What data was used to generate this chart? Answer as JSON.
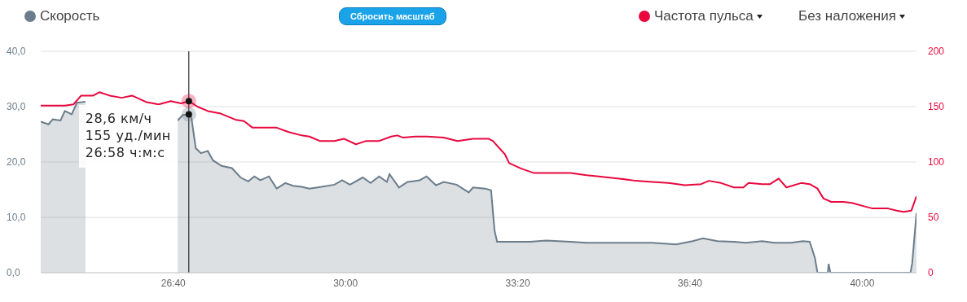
{
  "chart_data": {
    "type": "area",
    "series": [
      {
        "name": "Скорость",
        "color": "#6b7d8c",
        "x": [
          1446,
          1455,
          1460,
          1469,
          1474,
          1482,
          1488,
          1498,
          1512,
          1531,
          1550,
          1569,
          1588,
          1605,
          1611,
          1618,
          1621,
          1626,
          1632,
          1640,
          1646,
          1656,
          1668,
          1678,
          1687,
          1694,
          1701,
          1711,
          1720,
          1730,
          1739,
          1749,
          1758,
          1772,
          1787,
          1796,
          1805,
          1820,
          1829,
          1839,
          1848,
          1851,
          1862,
          1872,
          1886,
          1894,
          1905,
          1914,
          1929,
          1943,
          1948,
          1962,
          1969,
          1973,
          1976,
          1990,
          2014,
          2033,
          2061,
          2080,
          2118,
          2156,
          2184,
          2203,
          2215,
          2232,
          2251,
          2265,
          2284,
          2298,
          2317,
          2331,
          2339,
          2345,
          2348,
          2360,
          2361,
          2363,
          2456,
          2458,
          2463
        ],
        "values": [
          27.3,
          26.8,
          27.7,
          27.5,
          29.2,
          28.6,
          30.7,
          30.9,
          null,
          null,
          null,
          null,
          null,
          27.5,
          28.5,
          28.6,
          28,
          22.5,
          21.6,
          22,
          20.3,
          19.3,
          18.9,
          17.2,
          16.5,
          17.4,
          16.7,
          17.4,
          15.2,
          16.2,
          15.7,
          15.5,
          15.2,
          15.5,
          15.9,
          16.7,
          15.9,
          17.2,
          16.2,
          17.4,
          16.4,
          17.8,
          15.4,
          16.4,
          16.7,
          17.4,
          15.8,
          16.4,
          15.9,
          14.5,
          15.4,
          15.2,
          14.9,
          7.6,
          5.6,
          5.6,
          5.6,
          5.8,
          5.6,
          5.4,
          5.4,
          5.4,
          5.1,
          5.7,
          6.2,
          5.7,
          5.6,
          5.4,
          5.7,
          5.4,
          5.4,
          5.7,
          5.6,
          2.7,
          0,
          0,
          1.6,
          0,
          0,
          1.7,
          10.8
        ]
      },
      {
        "name": "Частота пульса",
        "type": "line",
        "axis": "y2",
        "color": "#e8083e",
        "x": [
          1446,
          1455,
          1474,
          1484,
          1493,
          1507,
          1514,
          1526,
          1540,
          1552,
          1569,
          1583,
          1597,
          1609,
          1618,
          1628,
          1640,
          1654,
          1673,
          1682,
          1692,
          1706,
          1720,
          1734,
          1749,
          1758,
          1770,
          1787,
          1798,
          1812,
          1824,
          1839,
          1853,
          1860,
          1867,
          1881,
          1895,
          1914,
          1930,
          1948,
          1966,
          1971,
          1985,
          1990,
          2004,
          2019,
          2042,
          2061,
          2080,
          2094,
          2118,
          2137,
          2156,
          2175,
          2194,
          2213,
          2222,
          2236,
          2251,
          2262,
          2268,
          2284,
          2293,
          2303,
          2312,
          2329,
          2339,
          2348,
          2355,
          2364,
          2378,
          2388,
          2402,
          2412,
          2430,
          2440,
          2448,
          2457,
          2463
        ],
        "values": [
          151,
          151,
          151,
          152,
          160,
          160,
          163,
          160,
          158,
          160,
          154,
          152,
          155,
          153,
          155,
          150,
          146,
          144,
          138,
          137,
          131,
          131,
          131,
          127,
          124,
          123,
          119,
          119,
          121,
          116,
          119,
          119,
          123,
          124,
          122,
          123,
          123,
          122,
          119,
          121,
          121,
          119,
          107,
          99,
          94,
          90,
          90,
          90,
          88,
          87,
          85,
          83,
          82,
          81,
          79,
          80,
          83,
          81,
          77,
          77,
          81,
          80,
          80,
          85,
          77,
          81,
          80,
          76,
          67,
          64,
          64,
          63,
          60,
          58,
          58,
          56,
          55,
          56,
          69
        ]
      }
    ],
    "xlim": [
      1446,
      2463
    ],
    "xticks": [
      {
        "value": 1600,
        "label": "26:40"
      },
      {
        "value": 1800,
        "label": "30:00"
      },
      {
        "value": 2000,
        "label": "33:20"
      },
      {
        "value": 2200,
        "label": "36:40"
      },
      {
        "value": 2400,
        "label": "40:00"
      }
    ],
    "ylim": [
      0,
      40
    ],
    "yticks": [
      {
        "value": 0,
        "label": "0,0"
      },
      {
        "value": 10,
        "label": "10,0"
      },
      {
        "value": 20,
        "label": "20,0"
      },
      {
        "value": 30,
        "label": "30,0"
      },
      {
        "value": 40,
        "label": "40,0"
      }
    ],
    "y2lim": [
      0,
      200
    ],
    "y2ticks": [
      0,
      50,
      100,
      150,
      200
    ],
    "grid": "y",
    "legend": "top",
    "marker": "none",
    "line_style": "solid",
    "ref_lines": [
      {
        "axis": "x",
        "value": 1618,
        "color": "#000000"
      }
    ],
    "annotations": [
      {
        "text": "28,6 км/ч\n155 уд./мин\n26:58 ч:м:с",
        "x": 1618,
        "y": 28.6
      },
      "Сбросить масштаб",
      "Без наложения"
    ]
  }
}
